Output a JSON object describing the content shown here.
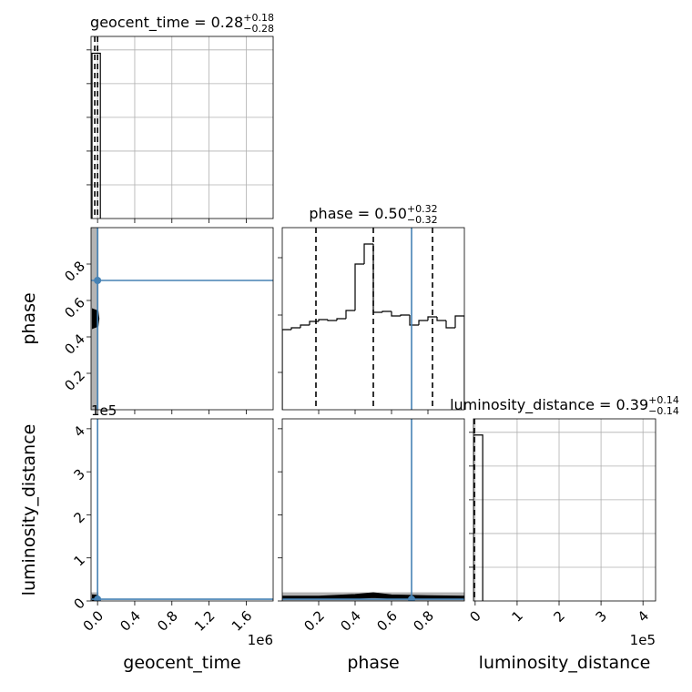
{
  "chart_data": [
    {
      "type": "histogram",
      "title": "geocent_time = 0.28",
      "title_sup": "+0.18",
      "title_sub": "−0.28",
      "xlim": [
        -0.07,
        1.89
      ],
      "ylim": [
        0,
        5.4
      ],
      "xticks": [
        0,
        0.4,
        0.8,
        1.2,
        1.6
      ],
      "yticks": [
        1,
        2,
        3,
        4,
        5
      ],
      "xtick_labels": false,
      "ytick_labels": false,
      "grid": true,
      "bins": [
        -0.06,
        0.03
      ],
      "values": [
        4.9
      ],
      "quantiles": [
        -0.03,
        0.0
      ],
      "color": "#000000"
    },
    {
      "type": "scatter2d",
      "ylabel": "phase",
      "xlim": [
        -0.07,
        1.89
      ],
      "ylim": [
        0,
        1
      ],
      "xticks": [
        0,
        0.4,
        0.8,
        1.2,
        1.6
      ],
      "yticks": [
        0.2,
        0.4,
        0.6,
        0.8
      ],
      "xtick_labels": false,
      "ytick_labels": true,
      "grid": false,
      "shade": {
        "x": [
          -0.07,
          0.01
        ],
        "y": [
          0,
          1
        ]
      },
      "shade_color": "#b4b4b4",
      "contour_x": [
        -0.05,
        0.0,
        0.01,
        0.0,
        -0.05
      ],
      "contour_y": [
        0.45,
        0.46,
        0.5,
        0.54,
        0.55
      ],
      "color": "#000000",
      "truth": {
        "x": 0.0,
        "y": 0.71
      },
      "truth_color": "#4682b4"
    },
    {
      "type": "histogram",
      "title": "phase = 0.50",
      "title_sup": "+0.32",
      "title_sub": "−0.32",
      "xlim": [
        0,
        1
      ],
      "ylim": [
        0,
        200
      ],
      "xticks": [
        0.2,
        0.4,
        0.6,
        0.8
      ],
      "yticks": [
        41,
        104,
        167
      ],
      "xtick_labels": false,
      "ytick_labels": false,
      "grid": false,
      "bins": [
        0,
        0.05,
        0.1,
        0.15,
        0.2,
        0.25,
        0.3,
        0.35,
        0.4,
        0.45,
        0.5,
        0.55,
        0.6,
        0.65,
        0.7,
        0.75,
        0.8,
        0.85,
        0.9,
        0.95,
        1.0
      ],
      "values": [
        88,
        90,
        93,
        97,
        99,
        98,
        100,
        109,
        160,
        182,
        107,
        108,
        103,
        104,
        93,
        98,
        102,
        98,
        90,
        103
      ],
      "quantiles": [
        0.185,
        0.5,
        0.825
      ],
      "color": "#000000",
      "truth": {
        "x": 0.71
      },
      "truth_color": "#4682b4"
    },
    {
      "type": "scatter2d",
      "xlabel": "geocent_time",
      "ylabel": "luminosity_distance",
      "x_offset": "1e6",
      "y_offset": "1e5",
      "xlim": [
        -0.07,
        1.89
      ],
      "ylim": [
        0,
        4.23
      ],
      "xticks": [
        {
          "value": 0,
          "label": "0.0"
        },
        0.4,
        0.8,
        1.2,
        1.6
      ],
      "yticks": [
        0,
        1,
        2,
        3,
        4
      ],
      "xtick_labels": true,
      "ytick_labels": true,
      "grid": false,
      "shade": {
        "x": [
          -0.07,
          0.01
        ],
        "y": [
          0,
          0.2
        ]
      },
      "shade_color": "#b4b4b4",
      "contour_x": [
        -0.05,
        0.0,
        0.01,
        0.0,
        -0.05
      ],
      "contour_y": [
        0.02,
        0.04,
        0.08,
        0.12,
        0.13
      ],
      "color": "#000000",
      "truth": {
        "x": 0.0,
        "y": 0.04
      },
      "truth_color": "#4682b4"
    },
    {
      "type": "scatter2d",
      "xlabel": "phase",
      "xlim": [
        0,
        1
      ],
      "ylim": [
        0,
        4.23
      ],
      "xticks": [
        0.2,
        0.4,
        0.6,
        0.8
      ],
      "yticks": [
        0,
        1,
        2,
        3,
        4
      ],
      "xtick_labels": true,
      "ytick_labels": false,
      "grid": false,
      "shade": {
        "x": [
          0,
          1
        ],
        "y": [
          0,
          0.2
        ]
      },
      "shade_color": "#b4b4b4",
      "contour_x": [
        0.0,
        0.2,
        0.4,
        0.5,
        0.6,
        0.8,
        1.0,
        1.0,
        0.8,
        0.6,
        0.5,
        0.4,
        0.2,
        0.0
      ],
      "contour_y": [
        0.1,
        0.1,
        0.14,
        0.18,
        0.13,
        0.11,
        0.1,
        0.06,
        0.06,
        0.07,
        0.09,
        0.07,
        0.06,
        0.06
      ],
      "color": "#000000",
      "truth": {
        "x": 0.71,
        "y": 0.04
      },
      "truth_color": "#4682b4"
    },
    {
      "type": "histogram",
      "title": "luminosity_distance = 0.39",
      "title_sup": "+0.14",
      "title_sub": "−0.14",
      "xlabel": "luminosity_distance",
      "x_offset": "1e5",
      "xlim": [
        -0.04,
        4.3
      ],
      "ylim": [
        0,
        5.4
      ],
      "xticks": [
        0,
        1,
        2,
        3,
        4
      ],
      "yticks": [
        1,
        2,
        3,
        4,
        5
      ],
      "xtick_labels": true,
      "ytick_labels": false,
      "grid": true,
      "bins": [
        -0.04,
        0.18
      ],
      "values": [
        4.92
      ],
      "quantiles": [
        -0.02
      ],
      "color": "#000000"
    }
  ]
}
